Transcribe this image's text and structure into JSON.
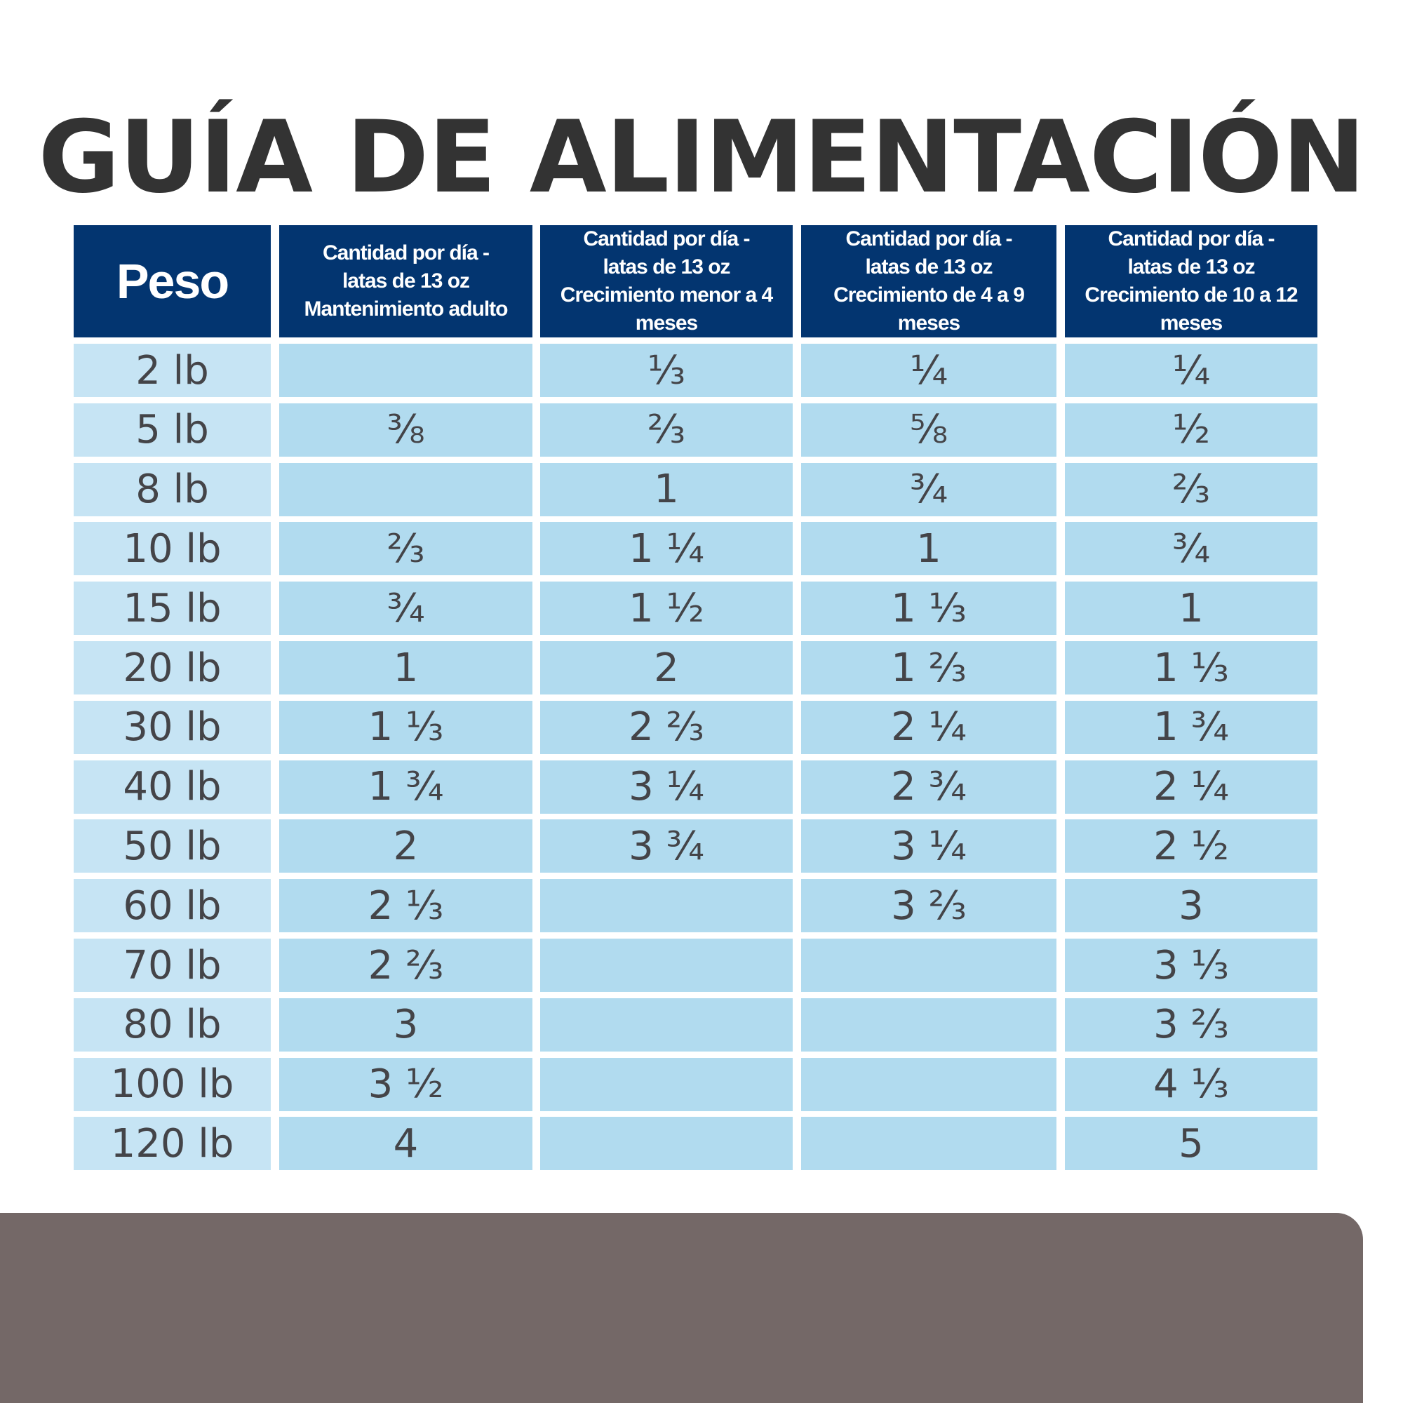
{
  "title": "GUÍA DE ALIMENTACIÓN",
  "colors": {
    "title": "#333333",
    "header_bg": "#033570",
    "header_text": "#ffffff",
    "cell_bg": "#b1dbef",
    "peso_cell_bg": "#c6e4f4",
    "cell_text": "#444448",
    "bottom_panel": "#746867"
  },
  "table": {
    "headers": [
      {
        "lines": [
          "Peso"
        ]
      },
      {
        "lines": [
          "Cantidad por día -",
          "latas de 13 oz",
          "Mantenimiento adulto"
        ]
      },
      {
        "lines": [
          "Cantidad por día -",
          "latas de 13 oz",
          "Crecimiento menor a 4 meses"
        ]
      },
      {
        "lines": [
          "Cantidad por día -",
          "latas de 13 oz",
          "Crecimiento de 4 a 9 meses"
        ]
      },
      {
        "lines": [
          "Cantidad por día -",
          "latas de 13 oz",
          "Crecimiento de 10 a 12 meses"
        ]
      }
    ],
    "rows": [
      [
        "2 lb",
        "",
        "⅓",
        "¼",
        "¼"
      ],
      [
        "5 lb",
        "⅜",
        "⅔",
        "⅝",
        "½"
      ],
      [
        "8 lb",
        "",
        "1",
        "¾",
        "⅔"
      ],
      [
        "10 lb",
        "⅔",
        "1 ¼",
        "1",
        "¾"
      ],
      [
        "15 lb",
        "¾",
        "1 ½",
        "1 ⅓",
        "1"
      ],
      [
        "20 lb",
        "1",
        "2",
        "1 ⅔",
        "1 ⅓"
      ],
      [
        "30 lb",
        "1 ⅓",
        "2 ⅔",
        "2 ¼",
        "1 ¾"
      ],
      [
        "40 lb",
        "1 ¾",
        "3 ¼",
        "2 ¾",
        "2 ¼"
      ],
      [
        "50 lb",
        "2",
        "3 ¾",
        "3 ¼",
        "2 ½"
      ],
      [
        "60 lb",
        "2 ⅓",
        "",
        "3 ⅔",
        "3"
      ],
      [
        "70 lb",
        "2 ⅔",
        "",
        "",
        "3 ⅓"
      ],
      [
        "80 lb",
        "3",
        "",
        "",
        "3 ⅔"
      ],
      [
        "100 lb",
        "3 ½",
        "",
        "",
        "4 ⅓"
      ],
      [
        "120 lb",
        "4",
        "",
        "",
        "5"
      ]
    ]
  }
}
